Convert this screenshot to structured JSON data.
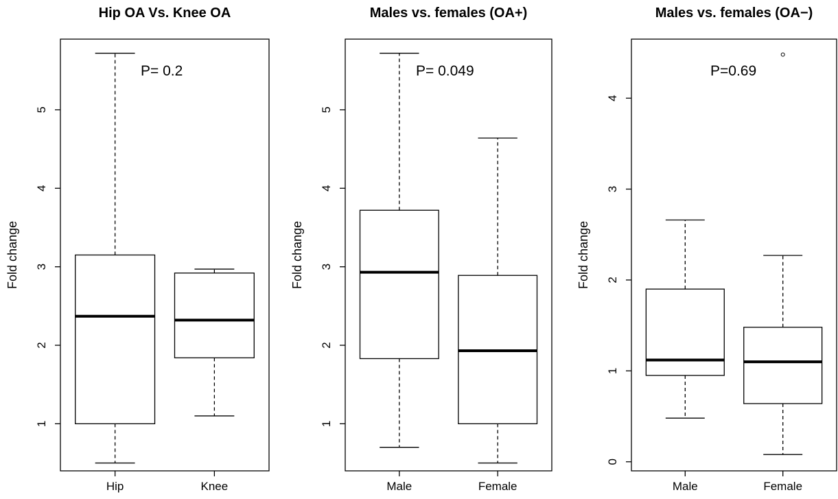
{
  "chart_data": [
    {
      "type": "box",
      "title": "Hip OA Vs. Knee OA",
      "ylabel": "Fold change",
      "xlabel": "",
      "ylim": [
        0.4,
        5.9
      ],
      "yticks": [
        "1",
        "2",
        "3",
        "4",
        "5"
      ],
      "annotation": "P= 0.2",
      "categories": [
        "Hip",
        "Knee"
      ],
      "boxes": [
        {
          "category": "Hip",
          "whisker_low": 0.5,
          "q1": 1.0,
          "median": 2.37,
          "q3": 3.15,
          "whisker_high": 5.72,
          "outliers": []
        },
        {
          "category": "Knee",
          "whisker_low": 1.1,
          "q1": 1.84,
          "median": 2.32,
          "q3": 2.92,
          "whisker_high": 2.97,
          "outliers": []
        }
      ]
    },
    {
      "type": "box",
      "title": "Males vs. females (OA+)",
      "ylabel": "Fold change",
      "xlabel": "",
      "ylim": [
        0.4,
        5.9
      ],
      "yticks": [
        "1",
        "2",
        "3",
        "4",
        "5"
      ],
      "annotation": "P= 0.049",
      "categories": [
        "Male",
        "Female"
      ],
      "boxes": [
        {
          "category": "Male",
          "whisker_low": 0.7,
          "q1": 1.83,
          "median": 2.93,
          "q3": 3.72,
          "whisker_high": 5.72,
          "outliers": []
        },
        {
          "category": "Female",
          "whisker_low": 0.5,
          "q1": 1.0,
          "median": 1.93,
          "q3": 2.89,
          "whisker_high": 4.64,
          "outliers": []
        }
      ]
    },
    {
      "type": "box",
      "title": "Males vs. females (OA−)",
      "ylabel": "Fold change",
      "xlabel": "",
      "ylim": [
        -0.1,
        4.65
      ],
      "yticks": [
        "0",
        "1",
        "2",
        "3",
        "4"
      ],
      "annotation": "P=0.69",
      "categories": [
        "Male",
        "Female"
      ],
      "boxes": [
        {
          "category": "Male",
          "whisker_low": 0.48,
          "q1": 0.95,
          "median": 1.12,
          "q3": 1.9,
          "whisker_high": 2.66,
          "outliers": []
        },
        {
          "category": "Female",
          "whisker_low": 0.08,
          "q1": 0.64,
          "median": 1.1,
          "q3": 1.48,
          "whisker_high": 2.27,
          "outliers": [
            4.48
          ]
        }
      ]
    }
  ]
}
